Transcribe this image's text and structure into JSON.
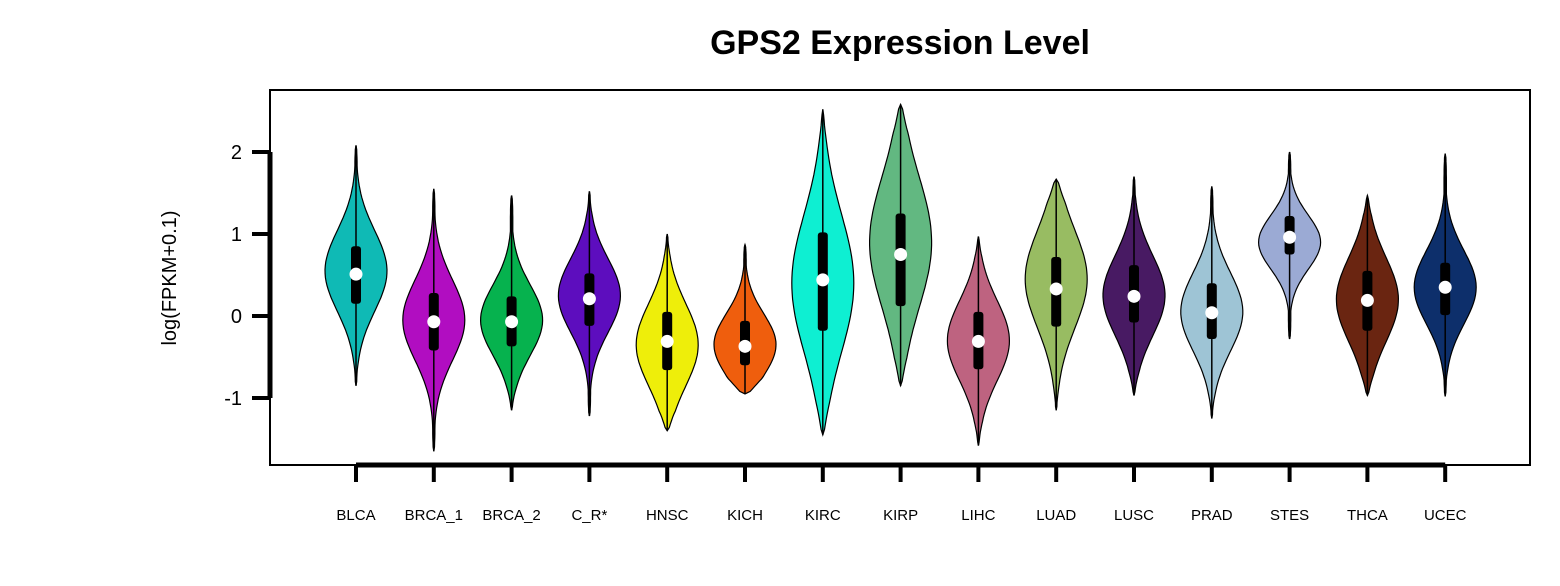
{
  "chart_data": {
    "type": "violin",
    "title": "GPS2 Expression Level",
    "xlabel": "",
    "ylabel": "log(FPKM+0.1)",
    "ylim": [
      -1.85,
      2.75
    ],
    "yticks": [
      "2",
      "1",
      "0",
      "-1"
    ],
    "grid": false,
    "categories": [
      "BLCA",
      "BRCA_1",
      "BRCA_2",
      "C_R*",
      "HNSC",
      "KICH",
      "KIRC",
      "KIRP",
      "LIHC",
      "LUAD",
      "LUSC",
      "PRAD",
      "STES",
      "THCA",
      "UCEC"
    ],
    "series": [
      {
        "category": "BLCA",
        "color": "#0FBAB5",
        "min": -0.85,
        "q1": 0.15,
        "median": 0.51,
        "q3": 0.85,
        "max": 2.08,
        "mode": 0.55
      },
      {
        "category": "BRCA_1",
        "color": "#B10DC1",
        "min": -1.65,
        "q1": -0.42,
        "median": -0.07,
        "q3": 0.28,
        "max": 1.55,
        "mode": -0.05
      },
      {
        "category": "BRCA_2",
        "color": "#06B24E",
        "min": -1.15,
        "q1": -0.37,
        "median": -0.07,
        "q3": 0.24,
        "max": 1.47,
        "mode": -0.05
      },
      {
        "category": "C_R*",
        "color": "#5D0DBE",
        "min": -1.22,
        "q1": -0.12,
        "median": 0.21,
        "q3": 0.52,
        "max": 1.52,
        "mode": 0.25
      },
      {
        "category": "HNSC",
        "color": "#EEEE0A",
        "min": -1.4,
        "q1": -0.66,
        "median": -0.31,
        "q3": 0.05,
        "max": 1.0,
        "mode": -0.35
      },
      {
        "category": "KICH",
        "color": "#EF5E0D",
        "min": -0.95,
        "q1": -0.6,
        "median": -0.37,
        "q3": -0.06,
        "max": 0.87,
        "mode": -0.35
      },
      {
        "category": "KIRC",
        "color": "#0EEFD2",
        "min": -1.45,
        "q1": -0.18,
        "median": 0.44,
        "q3": 1.02,
        "max": 2.52,
        "mode": 0.4
      },
      {
        "category": "KIRP",
        "color": "#62B881",
        "min": -0.85,
        "q1": 0.12,
        "median": 0.75,
        "q3": 1.25,
        "max": 2.58,
        "mode": 0.9
      },
      {
        "category": "LIHC",
        "color": "#BE6380",
        "min": -1.58,
        "q1": -0.65,
        "median": -0.31,
        "q3": 0.05,
        "max": 0.97,
        "mode": -0.3
      },
      {
        "category": "LUAD",
        "color": "#98BC62",
        "min": -1.15,
        "q1": -0.13,
        "median": 0.33,
        "q3": 0.72,
        "max": 1.67,
        "mode": 0.45
      },
      {
        "category": "LUSC",
        "color": "#481A63",
        "min": -0.97,
        "q1": -0.08,
        "median": 0.24,
        "q3": 0.62,
        "max": 1.7,
        "mode": 0.25
      },
      {
        "category": "PRAD",
        "color": "#9EC4D5",
        "min": -1.25,
        "q1": -0.28,
        "median": 0.04,
        "q3": 0.4,
        "max": 1.58,
        "mode": 0.05
      },
      {
        "category": "STES",
        "color": "#9BAAD4",
        "min": -0.28,
        "q1": 0.75,
        "median": 0.96,
        "q3": 1.22,
        "max": 2.0,
        "mode": 0.9
      },
      {
        "category": "THCA",
        "color": "#6A2511",
        "min": -0.97,
        "q1": -0.18,
        "median": 0.19,
        "q3": 0.55,
        "max": 1.47,
        "mode": 0.2
      },
      {
        "category": "UCEC",
        "color": "#0D2F6B",
        "min": -0.98,
        "q1": 0.01,
        "median": 0.35,
        "q3": 0.65,
        "max": 1.98,
        "mode": 0.35
      }
    ]
  }
}
